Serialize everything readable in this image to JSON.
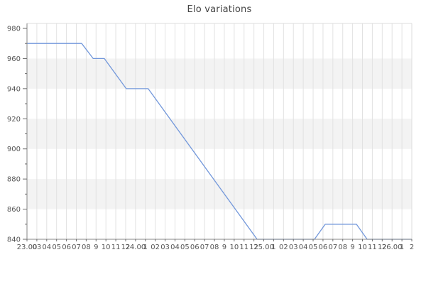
{
  "window": {
    "title": "Elo variations"
  },
  "chart_data": {
    "type": "line",
    "title": "Elo variations",
    "xlabel": "",
    "ylabel": "",
    "ylim": [
      840,
      983
    ],
    "y_major_ticks": [
      840,
      860,
      880,
      900,
      920,
      940,
      960,
      980
    ],
    "y_minor_ticks": [
      850,
      870,
      890,
      910,
      930,
      950,
      970
    ],
    "x_tick_labels": [
      "23.00",
      "03",
      "04",
      "05",
      "06",
      "07",
      "08",
      "9",
      "10",
      "11",
      "12",
      "24.00",
      "1",
      "02",
      "03",
      "04",
      "05",
      "06",
      "07",
      "08",
      "9",
      "10",
      "11",
      "12",
      "25.00",
      "1",
      "02",
      "03",
      "04",
      "05",
      "06",
      "07",
      "08",
      "9",
      "10",
      "11",
      "12",
      "26.00",
      "1",
      "2"
    ],
    "shaded_bands": [
      [
        860,
        880
      ],
      [
        900,
        920
      ],
      [
        940,
        960
      ]
    ],
    "grid": "vertical-on",
    "legend": "none",
    "series": [
      {
        "name": "Elo",
        "color": "#7398db",
        "points": [
          [
            0.0,
            970
          ],
          [
            0.142,
            970
          ],
          [
            0.172,
            960
          ],
          [
            0.201,
            960
          ],
          [
            0.258,
            940
          ],
          [
            0.315,
            940
          ],
          [
            0.598,
            840
          ],
          [
            0.747,
            840
          ],
          [
            0.775,
            850
          ],
          [
            0.856,
            850
          ],
          [
            0.884,
            840
          ],
          [
            1.0,
            840
          ]
        ]
      }
    ]
  },
  "style": {
    "background": "#ffffff",
    "band_color": "#f3f3f3",
    "grid_color": "#e2e2e2",
    "spine_dark": "#858585",
    "spine_light": "#dcdcdc",
    "tick_color": "#6b6b6b",
    "tick_label_color": "#555555",
    "title_color": "#444444"
  }
}
